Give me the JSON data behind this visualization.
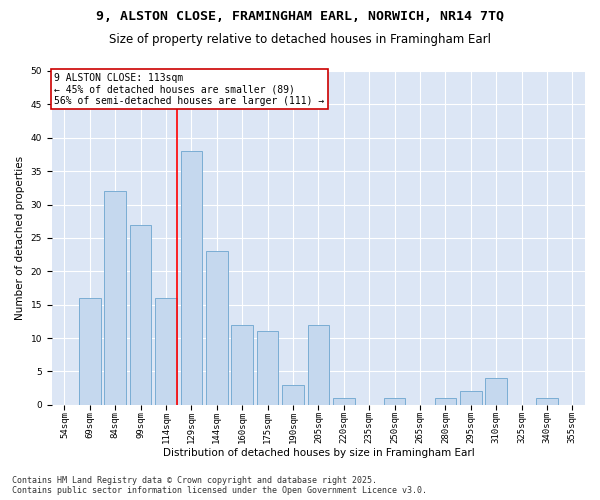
{
  "title1": "9, ALSTON CLOSE, FRAMINGHAM EARL, NORWICH, NR14 7TQ",
  "title2": "Size of property relative to detached houses in Framingham Earl",
  "xlabel": "Distribution of detached houses by size in Framingham Earl",
  "ylabel": "Number of detached properties",
  "categories": [
    "54sqm",
    "69sqm",
    "84sqm",
    "99sqm",
    "114sqm",
    "129sqm",
    "144sqm",
    "160sqm",
    "175sqm",
    "190sqm",
    "205sqm",
    "220sqm",
    "235sqm",
    "250sqm",
    "265sqm",
    "280sqm",
    "295sqm",
    "310sqm",
    "325sqm",
    "340sqm",
    "355sqm"
  ],
  "values": [
    0,
    16,
    32,
    27,
    16,
    38,
    23,
    12,
    11,
    3,
    12,
    1,
    0,
    1,
    0,
    1,
    2,
    4,
    0,
    1,
    0
  ],
  "bar_color": "#c5d8ee",
  "bar_edge_color": "#7aadd4",
  "redline_index": 4,
  "redline_label": "9 ALSTON CLOSE: 113sqm",
  "annotation_line1": "← 45% of detached houses are smaller (89)",
  "annotation_line2": "56% of semi-detached houses are larger (111) →",
  "annotation_box_color": "#ffffff",
  "annotation_box_edge_color": "#cc0000",
  "background_color": "#dce6f5",
  "ylim": [
    0,
    50
  ],
  "yticks": [
    0,
    5,
    10,
    15,
    20,
    25,
    30,
    35,
    40,
    45,
    50
  ],
  "footer1": "Contains HM Land Registry data © Crown copyright and database right 2025.",
  "footer2": "Contains public sector information licensed under the Open Government Licence v3.0.",
  "title_fontsize": 9.5,
  "subtitle_fontsize": 8.5,
  "axis_label_fontsize": 7.5,
  "tick_fontsize": 6.5,
  "annotation_fontsize": 7,
  "footer_fontsize": 6
}
